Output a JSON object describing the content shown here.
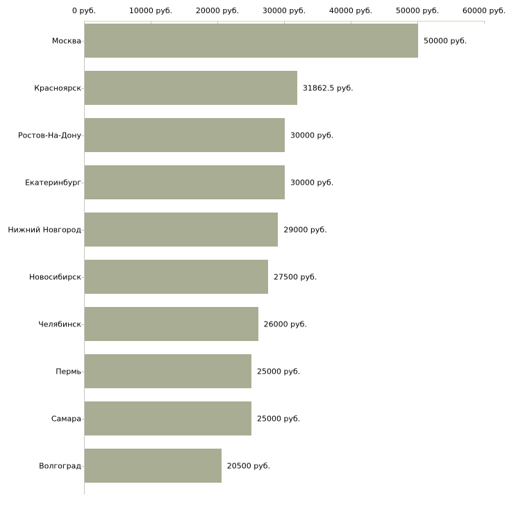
{
  "chart_data": {
    "type": "bar",
    "orientation": "horizontal",
    "title": "",
    "xlabel": "",
    "ylabel": "",
    "grid": false,
    "legend": false,
    "categories": [
      "Москва",
      "Красноярск",
      "Ростов-На-Дону",
      "Екатеринбург",
      "Нижний Новгород",
      "Новосибирск",
      "Челябинск",
      "Пермь",
      "Самара",
      "Волгоград"
    ],
    "values": [
      50000,
      31862.5,
      30000,
      30000,
      29000,
      27500,
      26000,
      25000,
      25000,
      20500
    ],
    "value_labels": [
      "50000 руб.",
      "31862.5 руб.",
      "30000 руб.",
      "30000 руб.",
      "29000 руб.",
      "27500 руб.",
      "26000 руб.",
      "25000 руб.",
      "25000 руб.",
      "20500 руб."
    ],
    "x_ticks": [
      0,
      10000,
      20000,
      30000,
      40000,
      50000,
      60000
    ],
    "x_tick_labels": [
      "0 руб.",
      "10000 руб.",
      "20000 руб.",
      "30000 руб.",
      "40000 руб.",
      "50000 руб.",
      "60000 руб."
    ],
    "xlim": [
      0,
      60000
    ],
    "unit": "руб.",
    "colors": {
      "bar": "#a8ad93",
      "x_axis_line": "#d7d5b6",
      "tick_mark": "#c9c7a5",
      "y_axis_line": "#c4c4c4",
      "text": "#000000",
      "background": "#ffffff"
    }
  }
}
